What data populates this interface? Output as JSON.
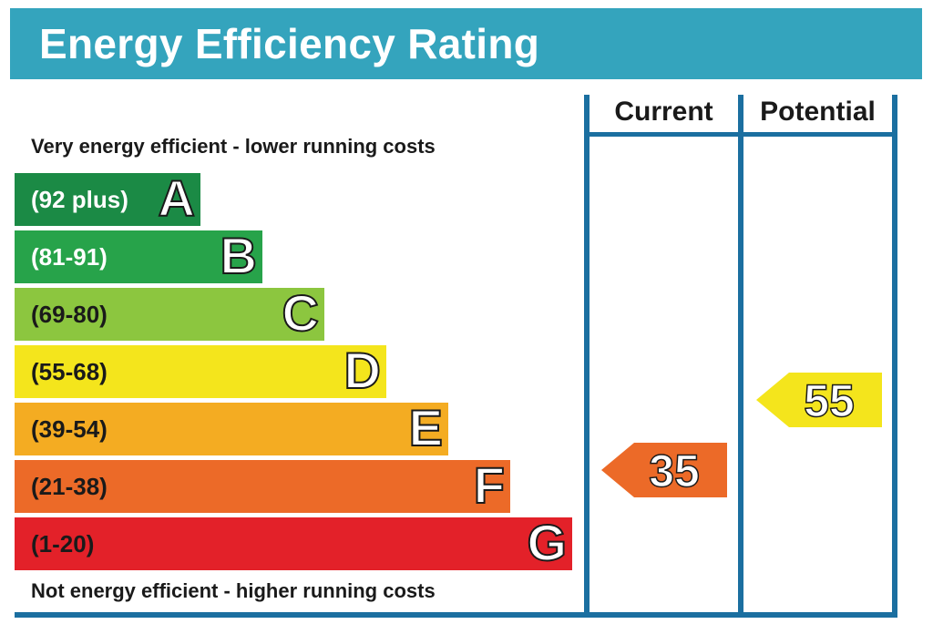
{
  "title": "Energy Efficiency Rating",
  "top_caption": "Very energy efficient - lower running costs",
  "bottom_caption": "Not energy efficient - higher running costs",
  "columns": {
    "current": "Current",
    "potential": "Potential"
  },
  "colors": {
    "header_bg": "#34a4bd",
    "frame": "#1b6fa0"
  },
  "chart_data": {
    "type": "bar",
    "title": "Energy Efficiency Rating",
    "bands": [
      {
        "range": "(92 plus)",
        "letter": "A",
        "color": "#1b8a45",
        "text_color": "#ffffff"
      },
      {
        "range": "(81-91)",
        "letter": "B",
        "color": "#27a34a",
        "text_color": "#ffffff"
      },
      {
        "range": "(69-80)",
        "letter": "C",
        "color": "#8cc63f",
        "text_color": "#1a1a1a"
      },
      {
        "range": "(55-68)",
        "letter": "D",
        "color": "#f4e51c",
        "text_color": "#1a1a1a"
      },
      {
        "range": "(39-54)",
        "letter": "E",
        "color": "#f4ac22",
        "text_color": "#1a1a1a"
      },
      {
        "range": "(21-38)",
        "letter": "F",
        "color": "#ec6a28",
        "text_color": "#1a1a1a"
      },
      {
        "range": "(1-20)",
        "letter": "G",
        "color": "#e32129",
        "text_color": "#1a1a1a"
      }
    ],
    "current": {
      "value": 35,
      "band": "F",
      "color": "#ec6a28"
    },
    "potential": {
      "value": 55,
      "band": "D",
      "color": "#f4e51c"
    }
  }
}
